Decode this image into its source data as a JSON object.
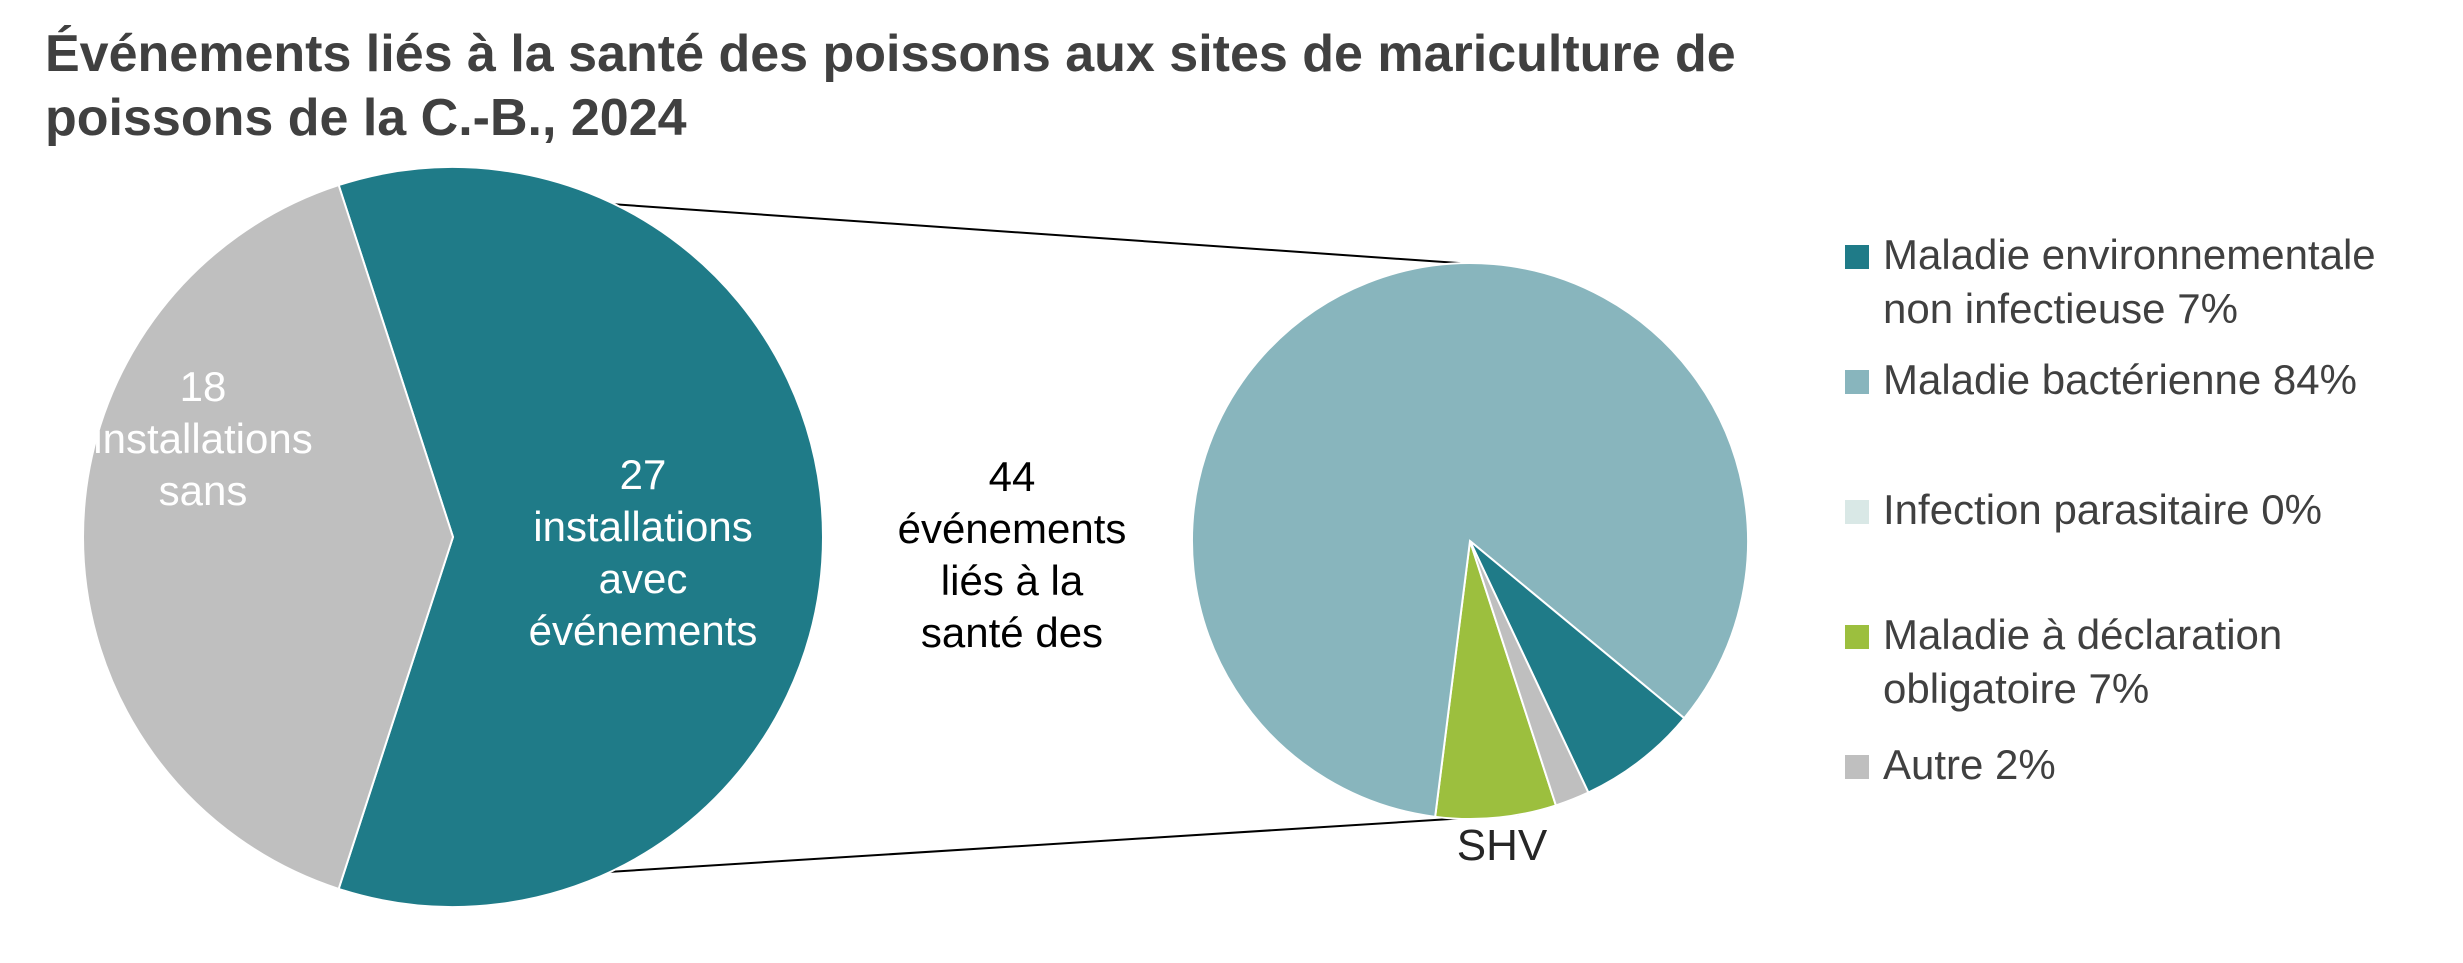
{
  "chart_data": [
    {
      "type": "pie",
      "title": [
        "Événements liés à la santé des poissons aux sites de mariculture de",
        "poissons de la C.-B., 2024"
      ],
      "slices": [
        {
          "label": [
            "27",
            "installations",
            "avec",
            "événements"
          ],
          "value": 27,
          "color": "#1F7B88"
        },
        {
          "label": [
            "18",
            "installations",
            "sans"
          ],
          "value": 18,
          "color": "#BFBFBF"
        }
      ]
    },
    {
      "type": "pie",
      "center_label": [
        "44",
        "événements",
        "liés à la",
        "santé des"
      ],
      "slices": [
        {
          "label": [
            "Maladie environnementale",
            "non infectieuse 7%"
          ],
          "value": 7,
          "color": "#1F7B88"
        },
        {
          "label": [
            "Maladie bactérienne 84%"
          ],
          "value": 84,
          "color": "#88B5BD"
        },
        {
          "label": [
            "Infection parasitaire 0%"
          ],
          "value": 0,
          "color": "#D9E8E6"
        },
        {
          "label": [
            "Maladie à déclaration",
            "obligatoire 7%"
          ],
          "value": 7,
          "color": "#9CBF3E"
        },
        {
          "label": [
            "Autre 2%"
          ],
          "value": 2,
          "color": "#BFBFBF"
        }
      ],
      "annotation": "SHV",
      "legend": "right"
    }
  ]
}
